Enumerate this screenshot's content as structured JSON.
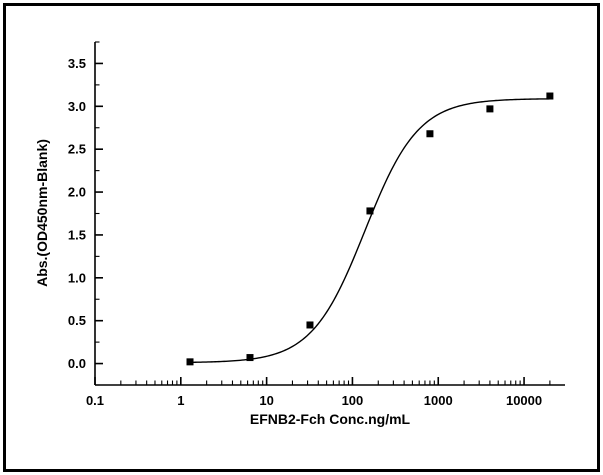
{
  "figure": {
    "background": "#ffffff",
    "border_color": "#000000"
  },
  "chart_data": {
    "type": "scatter",
    "title": "",
    "xlabel": "EFNB2-Fch Conc.ng/mL",
    "ylabel": "Abs.(OD450nm-Blank)",
    "x_scale": "log",
    "grid": false,
    "legend": null,
    "xlim": [
      0.1,
      30000
    ],
    "ylim": [
      -0.25,
      3.75
    ],
    "x_major_ticks": [
      0.1,
      1,
      10,
      100,
      1000,
      10000
    ],
    "x_tick_labels": [
      "0.1",
      "1",
      "10",
      "100",
      "1000",
      "10000"
    ],
    "y_major_ticks": [
      0,
      0.5,
      1,
      1.5,
      2,
      2.5,
      3,
      3.5
    ],
    "y_minor_step": 0.25,
    "points": {
      "x": [
        1.28,
        6.4,
        32,
        160,
        800,
        4000,
        20000
      ],
      "y": [
        0.02,
        0.07,
        0.45,
        1.78,
        2.68,
        2.97,
        3.12
      ]
    },
    "fit_curve": {
      "model": "4PL",
      "bottom": 0.01,
      "top": 3.09,
      "ec50": 140,
      "hill": 1.4
    },
    "marker": {
      "shape": "square",
      "color": "#000000",
      "size": 7
    },
    "line_color": "#000000",
    "text_color": "#000000"
  }
}
